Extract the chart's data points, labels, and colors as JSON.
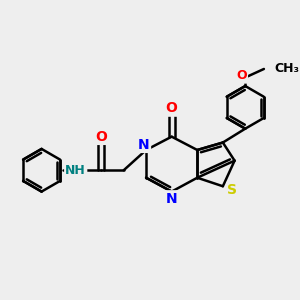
{
  "background_color": "#eeeeee",
  "bond_color": "#000000",
  "bond_width": 1.8,
  "atom_colors": {
    "N": "#0000ff",
    "O": "#ff0000",
    "S": "#cccc00",
    "H": "#008080",
    "C": "#000000"
  },
  "font_size": 9,
  "figsize": [
    3.0,
    3.0
  ],
  "dpi": 100,
  "xlim": [
    -1.6,
    3.6
  ],
  "ylim": [
    -1.3,
    1.9
  ]
}
